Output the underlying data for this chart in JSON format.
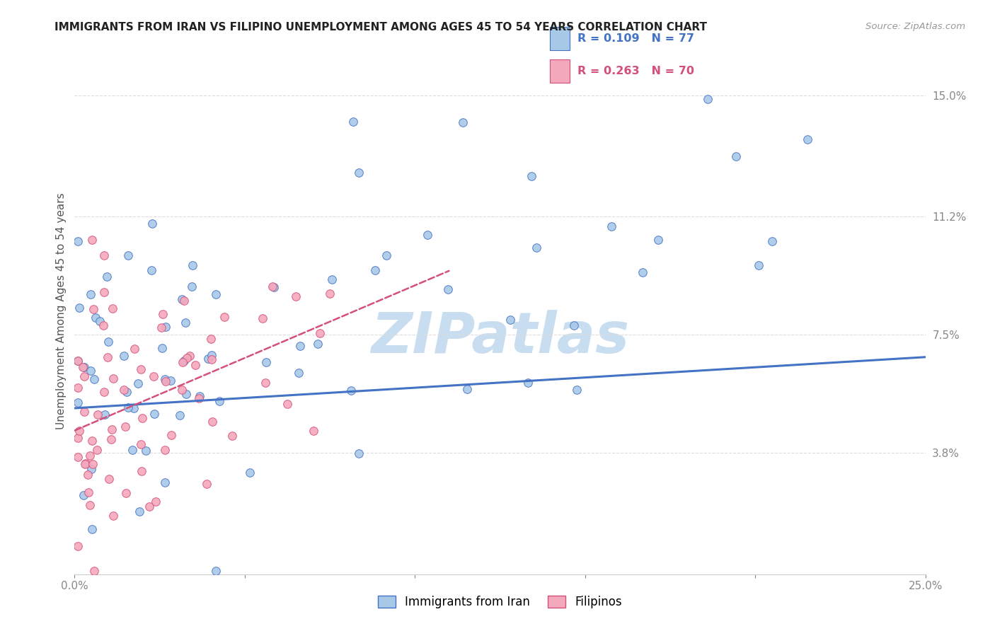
{
  "title": "IMMIGRANTS FROM IRAN VS FILIPINO UNEMPLOYMENT AMONG AGES 45 TO 54 YEARS CORRELATION CHART",
  "source": "Source: ZipAtlas.com",
  "ylabel": "Unemployment Among Ages 45 to 54 years",
  "ytick_labels": [
    "15.0%",
    "11.2%",
    "7.5%",
    "3.8%"
  ],
  "ytick_values": [
    0.15,
    0.112,
    0.075,
    0.038
  ],
  "xmin": 0.0,
  "xmax": 0.25,
  "ymin": 0.0,
  "ymax": 0.165,
  "legend_iran": "Immigrants from Iran",
  "legend_filipino": "Filipinos",
  "legend_r_iran": "R = 0.109",
  "legend_n_iran": "N = 77",
  "legend_r_filipino": "R = 0.263",
  "legend_n_filipino": "N = 70",
  "color_iran": "#a8c8e8",
  "color_iran_line": "#4472c4",
  "color_filipino": "#f4a8bc",
  "color_filipino_line": "#d4507a",
  "background_color": "#ffffff",
  "watermark_text": "ZIPatlas",
  "watermark_color": "#c8ddf0",
  "iran_trend_x0": 0.0,
  "iran_trend_x1": 0.25,
  "iran_trend_y0": 0.052,
  "iran_trend_y1": 0.068,
  "fil_trend_x0": 0.0,
  "fil_trend_x1": 0.11,
  "fil_trend_y0": 0.045,
  "fil_trend_y1": 0.095
}
